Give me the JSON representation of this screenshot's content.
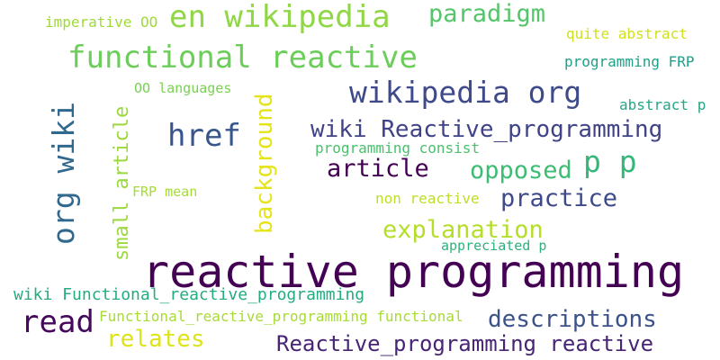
{
  "words": [
    {
      "text": "reactive programming",
      "color": "#440154"
    },
    {
      "text": "en wikipedia",
      "color": "#8fd744"
    },
    {
      "text": "functional reactive",
      "color": "#6ccd5a"
    },
    {
      "text": "wikipedia org",
      "color": "#3e4a89"
    },
    {
      "text": "org wiki",
      "color": "#31688e"
    },
    {
      "text": "href",
      "color": "#39568c"
    },
    {
      "text": "wiki Reactive_programming",
      "color": "#404387"
    },
    {
      "text": "p p",
      "color": "#35b779"
    },
    {
      "text": "read",
      "color": "#46085c"
    },
    {
      "text": "paradigm",
      "color": "#54c568"
    },
    {
      "text": "article",
      "color": "#440154"
    },
    {
      "text": "opposed",
      "color": "#3dbc74"
    },
    {
      "text": "practice",
      "color": "#3e4989"
    },
    {
      "text": "explanation",
      "color": "#b5de2b"
    },
    {
      "text": "background",
      "color": "#e5e419"
    },
    {
      "text": "small article",
      "color": "#9bd93c"
    },
    {
      "text": "descriptions",
      "color": "#3b528b"
    },
    {
      "text": "Reactive_programming reactive",
      "color": "#482475"
    },
    {
      "text": "relates",
      "color": "#dde318"
    },
    {
      "text": "wiki Functional_reactive_programming",
      "color": "#25ab82"
    },
    {
      "text": "Functional_reactive_programming functional",
      "color": "#a8db34"
    },
    {
      "text": "imperative OO",
      "color": "#a0da39"
    },
    {
      "text": "quite abstract",
      "color": "#d0e11c"
    },
    {
      "text": "programming FRP",
      "color": "#1fa188"
    },
    {
      "text": "OO languages",
      "color": "#7ad151"
    },
    {
      "text": "abstract p",
      "color": "#22a785"
    },
    {
      "text": "programming consist",
      "color": "#4ac16d"
    },
    {
      "text": "FRP mean",
      "color": "#a5db36"
    },
    {
      "text": "non reactive",
      "color": "#bddf26"
    },
    {
      "text": "appreciated p",
      "color": "#2db27d"
    }
  ]
}
